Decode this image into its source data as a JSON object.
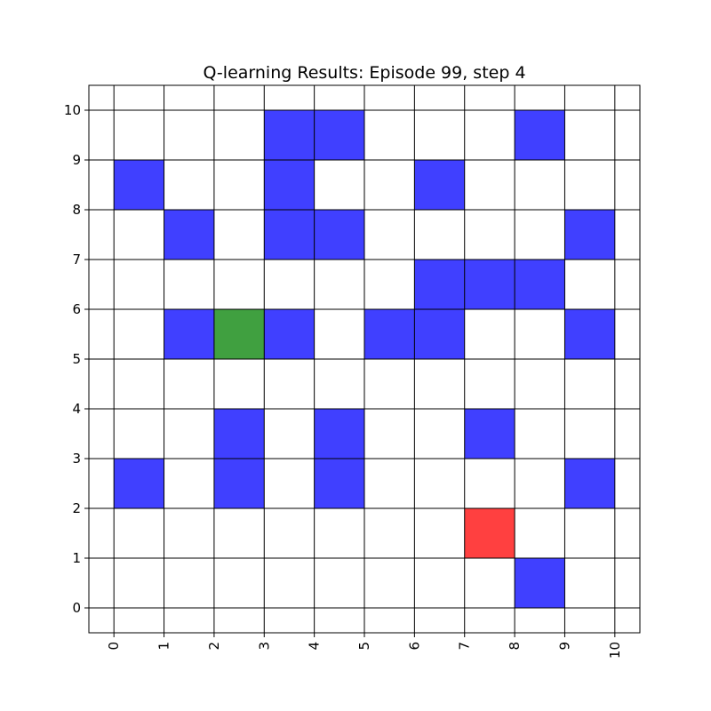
{
  "chart_data": {
    "type": "heatmap",
    "title": "Q-learning Results: Episode 99, step 4",
    "xlabel": "",
    "ylabel": "",
    "xlim": [
      -0.5,
      10.5
    ],
    "ylim": [
      -0.5,
      10.5
    ],
    "x_ticks": [
      "0",
      "1",
      "2",
      "3",
      "4",
      "5",
      "6",
      "7",
      "8",
      "9",
      "10"
    ],
    "y_ticks": [
      "0",
      "1",
      "2",
      "3",
      "4",
      "5",
      "6",
      "7",
      "8",
      "9",
      "10"
    ],
    "grid": true,
    "colors": {
      "obstacle": "#4040ff",
      "agent": "#40a040",
      "goal": "#ff4040"
    },
    "cells": [
      {
        "x": 3,
        "y": 9,
        "kind": "obstacle"
      },
      {
        "x": 4,
        "y": 9,
        "kind": "obstacle"
      },
      {
        "x": 8,
        "y": 9,
        "kind": "obstacle"
      },
      {
        "x": 0,
        "y": 8,
        "kind": "obstacle"
      },
      {
        "x": 3,
        "y": 8,
        "kind": "obstacle"
      },
      {
        "x": 6,
        "y": 8,
        "kind": "obstacle"
      },
      {
        "x": 1,
        "y": 7,
        "kind": "obstacle"
      },
      {
        "x": 3,
        "y": 7,
        "kind": "obstacle"
      },
      {
        "x": 4,
        "y": 7,
        "kind": "obstacle"
      },
      {
        "x": 9,
        "y": 7,
        "kind": "obstacle"
      },
      {
        "x": 6,
        "y": 6,
        "kind": "obstacle"
      },
      {
        "x": 7,
        "y": 6,
        "kind": "obstacle"
      },
      {
        "x": 8,
        "y": 6,
        "kind": "obstacle"
      },
      {
        "x": 1,
        "y": 5,
        "kind": "obstacle"
      },
      {
        "x": 3,
        "y": 5,
        "kind": "obstacle"
      },
      {
        "x": 5,
        "y": 5,
        "kind": "obstacle"
      },
      {
        "x": 6,
        "y": 5,
        "kind": "obstacle"
      },
      {
        "x": 9,
        "y": 5,
        "kind": "obstacle"
      },
      {
        "x": 2,
        "y": 3,
        "kind": "obstacle"
      },
      {
        "x": 4,
        "y": 3,
        "kind": "obstacle"
      },
      {
        "x": 7,
        "y": 3,
        "kind": "obstacle"
      },
      {
        "x": 0,
        "y": 2,
        "kind": "obstacle"
      },
      {
        "x": 2,
        "y": 2,
        "kind": "obstacle"
      },
      {
        "x": 4,
        "y": 2,
        "kind": "obstacle"
      },
      {
        "x": 9,
        "y": 2,
        "kind": "obstacle"
      },
      {
        "x": 8,
        "y": 0,
        "kind": "obstacle"
      },
      {
        "x": 2,
        "y": 5,
        "kind": "agent"
      },
      {
        "x": 7,
        "y": 1,
        "kind": "goal"
      }
    ]
  }
}
